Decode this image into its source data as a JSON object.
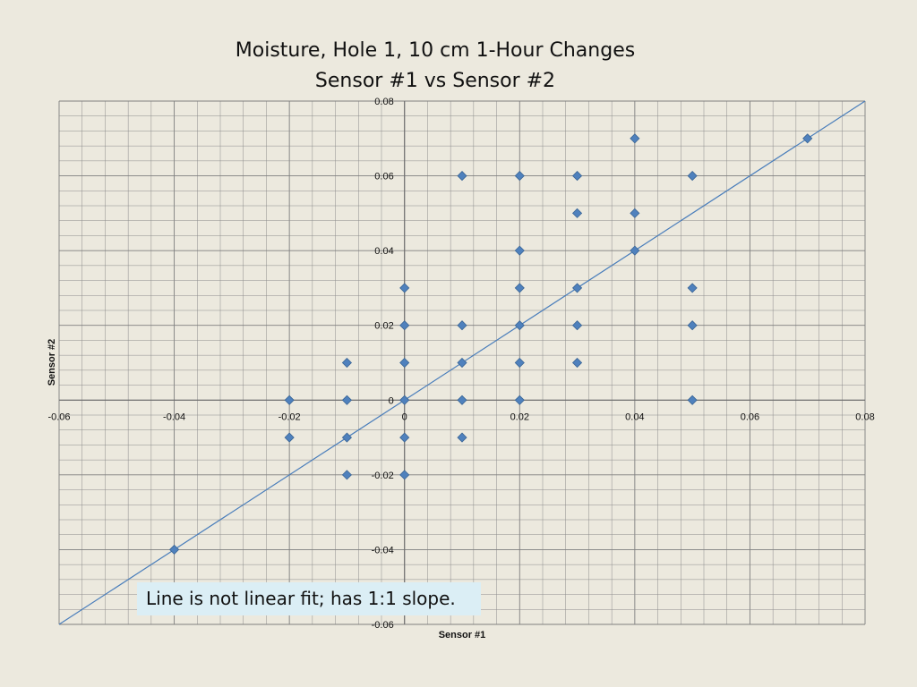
{
  "chart_data": {
    "type": "scatter",
    "title": "Moisture, Hole 1, 10 cm 1-Hour Changes",
    "subtitle": "Sensor #1 vs Sensor #2",
    "xlabel": "Sensor #1",
    "ylabel": "Sensor #2",
    "xlim": [
      -0.06,
      0.08
    ],
    "ylim": [
      -0.06,
      0.08
    ],
    "x_major_step": 0.02,
    "y_major_step": 0.02,
    "minor_divisions": 5,
    "grid": true,
    "x_tick_labels": [
      "-0.06",
      "-0.04",
      "-0.02",
      "0",
      "0.02",
      "0.04",
      "0.06",
      "0.08"
    ],
    "y_tick_labels": [
      "-0.06",
      "-0.04",
      "-0.02",
      "0",
      "0.02",
      "0.04",
      "0.06",
      "0.08"
    ],
    "points": [
      {
        "x": -0.04,
        "y": -0.04
      },
      {
        "x": -0.02,
        "y": 0
      },
      {
        "x": -0.02,
        "y": -0.01
      },
      {
        "x": -0.01,
        "y": 0.01
      },
      {
        "x": -0.01,
        "y": 0
      },
      {
        "x": -0.01,
        "y": -0.01
      },
      {
        "x": -0.01,
        "y": -0.02
      },
      {
        "x": 0,
        "y": 0.03
      },
      {
        "x": 0,
        "y": 0.02
      },
      {
        "x": 0,
        "y": 0.01
      },
      {
        "x": 0,
        "y": 0
      },
      {
        "x": 0,
        "y": -0.01
      },
      {
        "x": 0,
        "y": -0.02
      },
      {
        "x": 0.01,
        "y": 0.06
      },
      {
        "x": 0.01,
        "y": 0.02
      },
      {
        "x": 0.01,
        "y": 0.01
      },
      {
        "x": 0.01,
        "y": 0
      },
      {
        "x": 0.01,
        "y": -0.01
      },
      {
        "x": 0.02,
        "y": 0.06
      },
      {
        "x": 0.02,
        "y": 0.04
      },
      {
        "x": 0.02,
        "y": 0.03
      },
      {
        "x": 0.02,
        "y": 0.02
      },
      {
        "x": 0.02,
        "y": 0.01
      },
      {
        "x": 0.02,
        "y": 0
      },
      {
        "x": 0.03,
        "y": 0.06
      },
      {
        "x": 0.03,
        "y": 0.05
      },
      {
        "x": 0.03,
        "y": 0.03
      },
      {
        "x": 0.03,
        "y": 0.02
      },
      {
        "x": 0.03,
        "y": 0.01
      },
      {
        "x": 0.04,
        "y": 0.07
      },
      {
        "x": 0.04,
        "y": 0.05
      },
      {
        "x": 0.04,
        "y": 0.04
      },
      {
        "x": 0.05,
        "y": 0.06
      },
      {
        "x": 0.05,
        "y": 0.03
      },
      {
        "x": 0.05,
        "y": 0.02
      },
      {
        "x": 0.05,
        "y": 0
      },
      {
        "x": 0.07,
        "y": 0.07
      }
    ],
    "reference_line": {
      "slope": 1,
      "intercept": 0
    },
    "annotation": "Line is not linear fit; has 1:1 slope.",
    "colors": {
      "marker": "#4f81bd",
      "marker_edge": "#3a6595",
      "line": "#4a7ebb",
      "grid": "#8c8c8c",
      "grid_major": "#7f7f7f",
      "callout_bg": "#dbeef5",
      "background": "#ece9de"
    }
  }
}
